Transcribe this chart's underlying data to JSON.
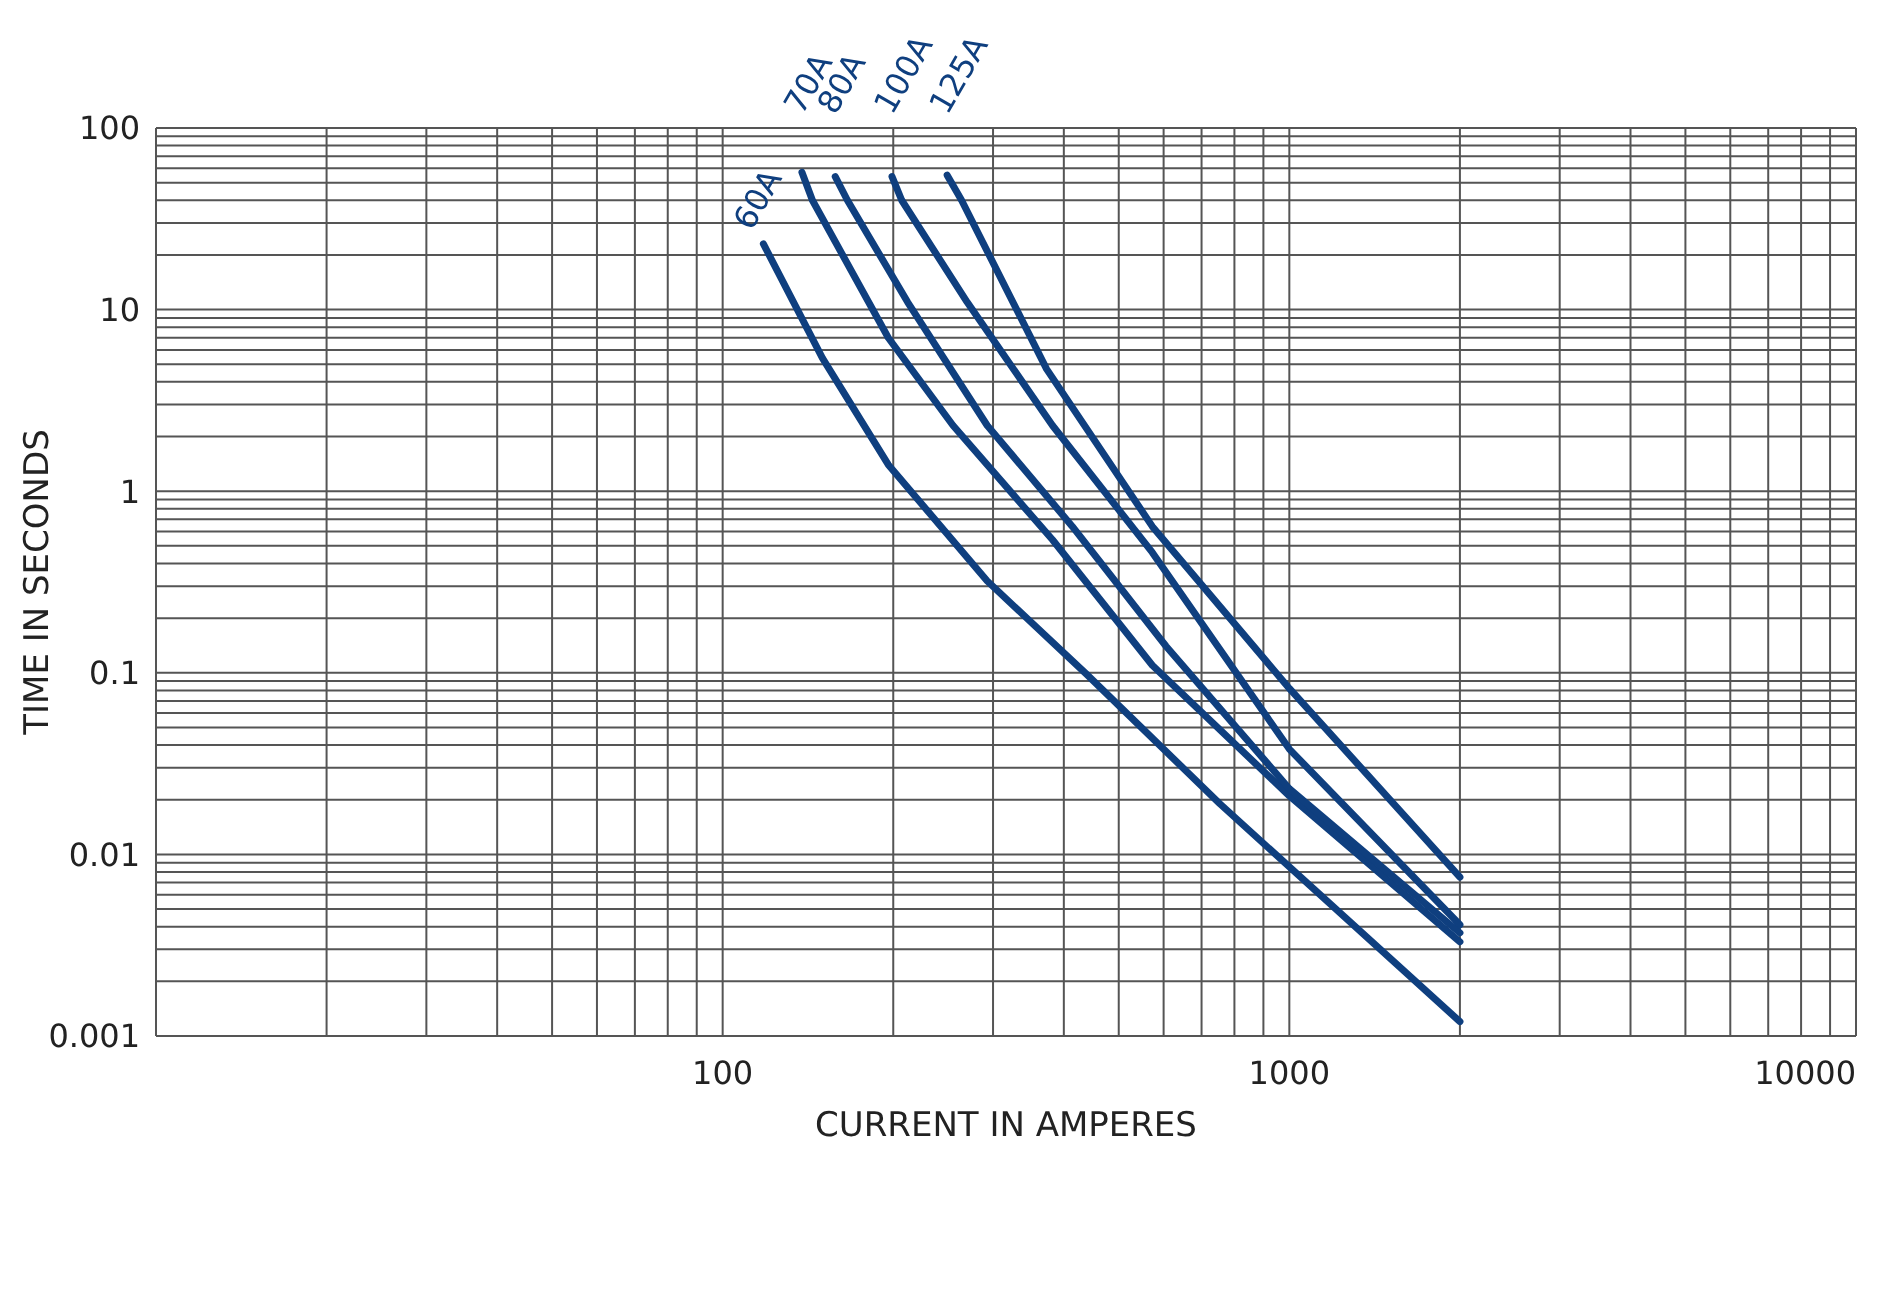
{
  "chart_data": {
    "type": "line",
    "xlabel": "CURRENT IN AMPERES",
    "ylabel": "TIME IN SECONDS",
    "log": "xy",
    "grid": true,
    "legend": false,
    "marker": "none",
    "line_style": "solid",
    "xlim": [
      10,
      10000
    ],
    "xticks": [
      {
        "value": 10,
        "label": null
      },
      {
        "value": 20,
        "label": null
      },
      {
        "value": 30,
        "label": null
      },
      {
        "value": 40,
        "label": null
      },
      {
        "value": 50,
        "label": null
      },
      {
        "value": 60,
        "label": null
      },
      {
        "value": 70,
        "label": null
      },
      {
        "value": 80,
        "label": null
      },
      {
        "value": 90,
        "label": null
      },
      100,
      {
        "value": 200,
        "label": null
      },
      {
        "value": 300,
        "label": null
      },
      {
        "value": 400,
        "label": null
      },
      {
        "value": 500,
        "label": null
      },
      {
        "value": 600,
        "label": null
      },
      {
        "value": 700,
        "label": null
      },
      {
        "value": 800,
        "label": null
      },
      {
        "value": 900,
        "label": null
      },
      1000,
      {
        "value": 2000,
        "label": null
      },
      {
        "value": 3000,
        "label": null
      },
      {
        "value": 4000,
        "label": null
      },
      {
        "value": 5000,
        "label": null
      },
      {
        "value": 6000,
        "label": null
      },
      {
        "value": 7000,
        "label": null
      },
      {
        "value": 8000,
        "label": null
      },
      {
        "value": 9000,
        "label": null
      },
      10000
    ],
    "ylim": [
      0.001,
      100
    ],
    "yticks": [
      0.001,
      {
        "value": 0.002,
        "label": null
      },
      {
        "value": 0.003,
        "label": null
      },
      {
        "value": 0.004,
        "label": null
      },
      {
        "value": 0.005,
        "label": null
      },
      {
        "value": 0.006,
        "label": null
      },
      {
        "value": 0.007,
        "label": null
      },
      {
        "value": 0.008,
        "label": null
      },
      {
        "value": 0.009,
        "label": null
      },
      0.01,
      {
        "value": 0.02,
        "label": null
      },
      {
        "value": 0.03,
        "label": null
      },
      {
        "value": 0.04,
        "label": null
      },
      {
        "value": 0.05,
        "label": null
      },
      {
        "value": 0.06,
        "label": null
      },
      {
        "value": 0.07,
        "label": null
      },
      {
        "value": 0.08,
        "label": null
      },
      {
        "value": 0.09,
        "label": null
      },
      0.1,
      {
        "value": 0.2,
        "label": null
      },
      {
        "value": 0.3,
        "label": null
      },
      {
        "value": 0.4,
        "label": null
      },
      {
        "value": 0.5,
        "label": null
      },
      {
        "value": 0.6,
        "label": null
      },
      {
        "value": 0.7,
        "label": null
      },
      {
        "value": 0.8,
        "label": null
      },
      {
        "value": 0.9,
        "label": null
      },
      1,
      {
        "value": 2,
        "label": null
      },
      {
        "value": 3,
        "label": null
      },
      {
        "value": 4,
        "label": null
      },
      {
        "value": 5,
        "label": null
      },
      {
        "value": 6,
        "label": null
      },
      {
        "value": 7,
        "label": null
      },
      {
        "value": 8,
        "label": null
      },
      {
        "value": 9,
        "label": null
      },
      10,
      {
        "value": 20,
        "label": null
      },
      {
        "value": 30,
        "label": null
      },
      {
        "value": 40,
        "label": null
      },
      {
        "value": 50,
        "label": null
      },
      {
        "value": 60,
        "label": null
      },
      {
        "value": 70,
        "label": null
      },
      {
        "value": 80,
        "label": null
      },
      {
        "value": 90,
        "label": null
      },
      100
    ],
    "series": [
      {
        "name": "60A",
        "color": "#0f3f7f",
        "x": [
          118,
          150,
          196,
          293,
          439,
          754,
          2000
        ],
        "values": [
          23,
          5.4,
          1.4,
          0.32,
          0.098,
          0.019,
          0.0012
        ]
      },
      {
        "name": "70A",
        "color": "#0f3f7f",
        "x": [
          138,
          144,
          196,
          255,
          382,
          573,
          1000,
          2000
        ],
        "values": [
          57,
          40,
          7,
          2.3,
          0.54,
          0.11,
          0.021,
          0.0033
        ]
      },
      {
        "name": "80A",
        "color": "#0f3f7f",
        "x": [
          158,
          166,
          212,
          293,
          414,
          606,
          1000,
          2000
        ],
        "values": [
          54,
          40,
          11,
          2.3,
          0.64,
          0.14,
          0.023,
          0.0037
        ]
      },
      {
        "name": "100A",
        "color": "#0f3f7f",
        "x": [
          199,
          207,
          270,
          382,
          573,
          1000,
          2000
        ],
        "values": [
          54,
          40,
          11,
          2.3,
          0.46,
          0.038,
          0.0041
        ]
      },
      {
        "name": "125A",
        "color": "#0f3f7f",
        "x": [
          249,
          264,
          373,
          573,
          1000,
          2000
        ],
        "values": [
          55,
          40,
          4.7,
          0.64,
          0.082,
          0.0075
        ]
      }
    ]
  }
}
